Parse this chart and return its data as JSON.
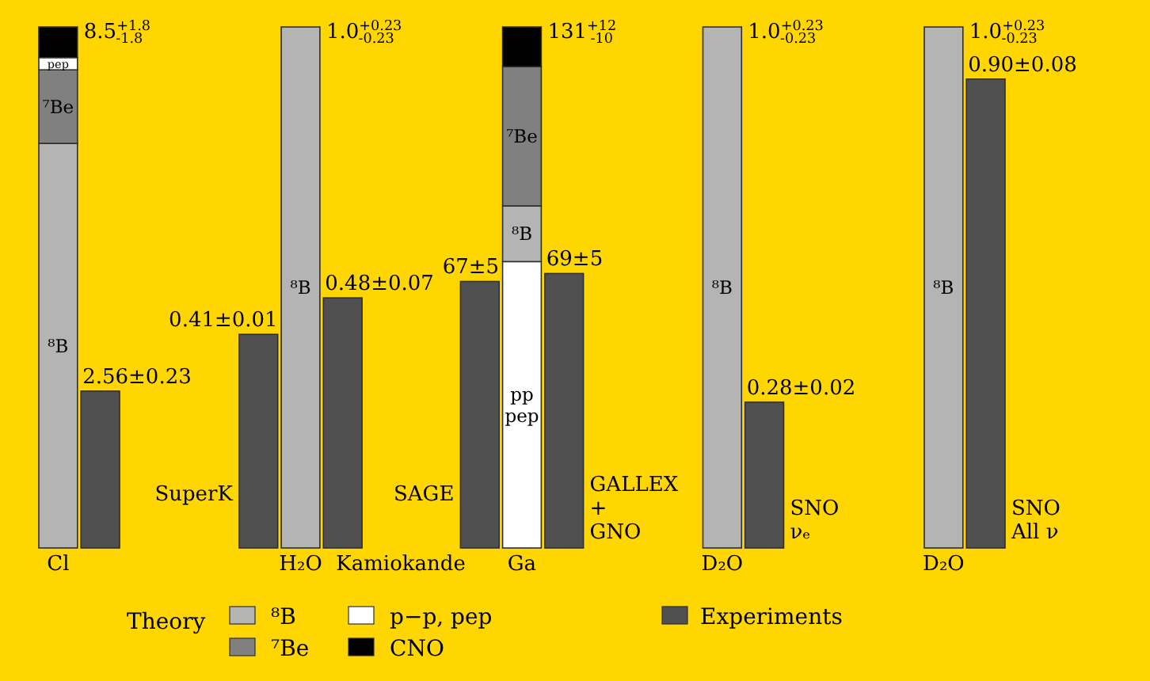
{
  "chart_data": [
    {
      "type": "bar",
      "stacked": true,
      "legend": "bottom",
      "legend_title": "Theory",
      "categories": [
        "Cl",
        null
      ],
      "series": [
        {
          "name": "⁸B",
          "color": "#b4b4b4",
          "values": [
            6.6,
            null
          ],
          "value_labels": [
            "⁸B",
            null
          ]
        },
        {
          "name": "⁷Be",
          "color": "#808080",
          "values": [
            1.2,
            null
          ],
          "value_labels": [
            "⁷Be",
            null
          ]
        },
        {
          "name": "p−p, pep",
          "color": "#ffffff",
          "values": [
            0.2,
            null
          ],
          "value_labels": [
            "pep",
            null
          ]
        },
        {
          "name": "CNO",
          "color": "#000000",
          "values": [
            0.5,
            null
          ]
        },
        {
          "name": "Experiments",
          "color": "#505050",
          "values": [
            null,
            2.56
          ],
          "value_labels": [
            null,
            "2.56±0.23"
          ]
        }
      ],
      "totals": [
        "8.5$^{+1.8}$$_{-1.8}$",
        null
      ]
    },
    {
      "type": "bar",
      "stacked": true,
      "categories": [
        null,
        "H₂O",
        null
      ],
      "series": [
        {
          "name": "SuperK",
          "color": "#505050",
          "values": [
            0.41,
            null,
            null
          ],
          "value_labels": [
            "0.41±0.01",
            null,
            null
          ]
        },
        {
          "name": "⁸B",
          "color": "#b4b4b4",
          "values": [
            null,
            1.0,
            null
          ]
        },
        {
          "name": "Kamiokande",
          "color": "#505050",
          "values": [
            null,
            null,
            0.48
          ],
          "value_labels": [
            null,
            null,
            "0.48±0.07"
          ]
        }
      ],
      "totals": [
        null,
        "1.0$^{+0.23}$$_{-0.23}$",
        null
      ]
    },
    {
      "type": "bar",
      "stacked": true,
      "categories": [
        null,
        "Ga",
        null
      ],
      "series": [
        {
          "name": "pp\npep",
          "color": "#ffffff",
          "values": [
            null,
            72,
            null
          ]
        },
        {
          "name": "⁸B",
          "color": "#b4b4b4",
          "values": [
            null,
            14,
            null
          ]
        },
        {
          "name": "⁷Be",
          "color": "#808080",
          "values": [
            null,
            35,
            null
          ]
        },
        {
          "color": "#000000",
          "values": [
            null,
            10,
            null
          ]
        },
        {
          "name": "SAGE",
          "color": "#505050",
          "values": [
            67,
            null,
            null
          ],
          "value_labels": [
            "67±5",
            null,
            null
          ]
        },
        {
          "name": "GALLEX\n+\nGNO",
          "color": "#505050",
          "values": [
            null,
            null,
            69
          ],
          "value_labels": [
            null,
            null,
            "69±5"
          ]
        }
      ],
      "totals": [
        null,
        "131$^{+12}$$_{-10}$",
        null
      ]
    },
    {
      "type": "bar",
      "stacked": true,
      "categories": [
        "D₂O",
        null
      ],
      "series": [
        {
          "name": "⁸B",
          "color": "#b4b4b4",
          "values": [
            1.0,
            null
          ]
        },
        {
          "name": "SNO\nνₑ",
          "color": "#505050",
          "values": [
            null,
            0.28
          ],
          "value_labels": [
            null,
            "0.28±0.02"
          ]
        }
      ],
      "totals": [
        "1.0$^{+0.23}$$_{-0.23}$",
        null
      ]
    },
    {
      "type": "bar",
      "stacked": true,
      "categories": [
        "D₂O",
        null
      ],
      "series": [
        {
          "name": "⁸B",
          "color": "#b4b4b4",
          "values": [
            1.0,
            null
          ]
        },
        {
          "name": "SNO\nAll ν",
          "color": "#505050",
          "values": [
            null,
            0.9
          ],
          "value_labels": [
            null,
            "0.90±0.08"
          ]
        }
      ],
      "totals": [
        "1.0$^{+0.23}$$_{-0.23}$",
        null
      ]
    }
  ]
}
